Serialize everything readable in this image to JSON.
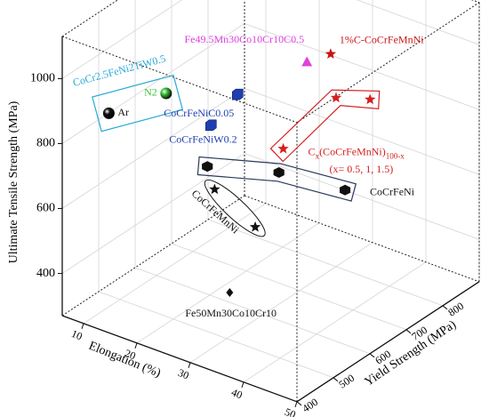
{
  "chart_data": {
    "type": "scatter3d",
    "xlabel": "Elongation (%)",
    "ylabel": "Yield Strength (MPa)",
    "zlabel": "Ultimate Tensile Strength (MPa)",
    "xlim": [
      6,
      50
    ],
    "ylim": [
      400,
      900
    ],
    "zlim": [
      270,
      1130
    ],
    "xticks": [
      10,
      20,
      30,
      40,
      50
    ],
    "yticks": [
      400,
      500,
      600,
      700,
      800
    ],
    "zticks": [
      400,
      600,
      800,
      1000
    ],
    "grid": true,
    "series": [
      {
        "name": "CoCr2.5FeNi2TiW0.5",
        "color": "#29a9d6",
        "marker": "sphere",
        "outline": "rect",
        "point_labels": [
          "Ar",
          "N2"
        ],
        "point_colors": [
          "#111111",
          "#3cc43c"
        ],
        "x": [
          12,
          20
        ],
        "y": [
          440,
          480
        ],
        "z": [
          900,
          980
        ]
      },
      {
        "name": "CoCrFeNiC0.05",
        "color": "#1f3fb0",
        "marker": "cube",
        "x": [
          30
        ],
        "y": [
          530
        ],
        "z": [
          1000
        ]
      },
      {
        "name": "CoCrFeNiW0.2",
        "color": "#1f3fb0",
        "marker": "cube",
        "x": [
          25
        ],
        "y": [
          530
        ],
        "z": [
          875
        ]
      },
      {
        "name": "Fe49.5Mn30Co10Cr10C0.5",
        "color": "#e040e0",
        "marker": "triangle",
        "x": [
          30
        ],
        "y": [
          720
        ],
        "z": [
          960
        ]
      },
      {
        "name": "1%C-CoCrFeMnNi",
        "color": "#c81414",
        "marker": "star",
        "x": [
          35
        ],
        "y": [
          712
        ],
        "z": [
          1020
        ]
      },
      {
        "name": [
          "C",
          "x",
          "(CoCrFeMnNi)",
          "100-x"
        ],
        "note": "(x= 0.5, 1, 1.5)",
        "color": "#d42020",
        "marker": "star",
        "outline": "band",
        "x": [
          30,
          30,
          35
        ],
        "y": [
          655,
          800,
          820
        ],
        "z": [
          740,
          790,
          800
        ]
      },
      {
        "name": "CoCrFeNi",
        "color": "#111111",
        "marker": "hexagon",
        "outline": "band",
        "x": [
          25,
          35,
          45
        ],
        "y": [
          520,
          570,
          605
        ],
        "z": [
          755,
          760,
          740
        ]
      },
      {
        "name": "CoCrFeMnNi",
        "color": "#111111",
        "marker": "star",
        "outline": "ellipse",
        "x": [
          25,
          35
        ],
        "y": [
          540,
          505
        ],
        "z": [
          670,
          640
        ]
      },
      {
        "name": "Fe50Mn30Co10Cr10",
        "color": "#111111",
        "marker": "diamond",
        "x": [
          35
        ],
        "y": [
          435
        ],
        "z": [
          490
        ]
      }
    ]
  }
}
